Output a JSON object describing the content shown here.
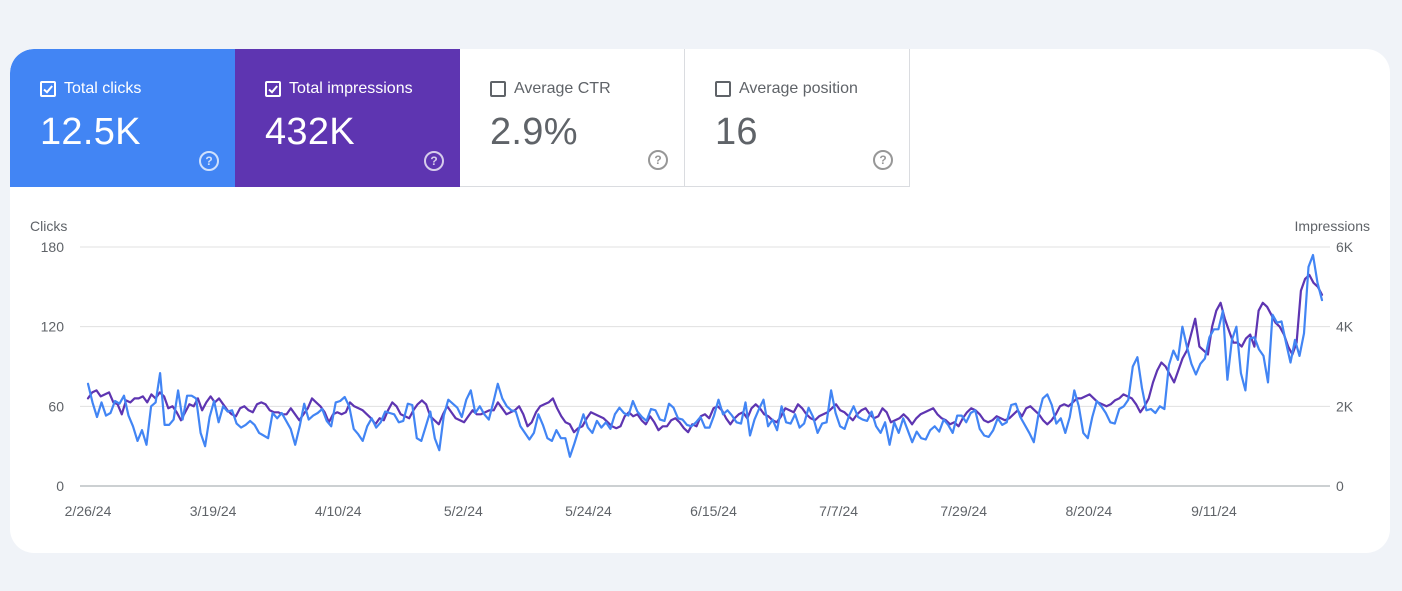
{
  "metrics": {
    "clicks": {
      "label": "Total clicks",
      "value": "12.5K",
      "checked": true
    },
    "impressions": {
      "label": "Total impressions",
      "value": "432K",
      "checked": true
    },
    "ctr": {
      "label": "Average CTR",
      "value": "2.9%",
      "checked": false
    },
    "position": {
      "label": "Average position",
      "value": "16",
      "checked": false
    }
  },
  "colors": {
    "clicks": "#4285f4",
    "impressions": "#5e35b1",
    "grid": "#e0e0e0",
    "axisText": "#5f6368"
  },
  "icons": {
    "checkbox": "check-icon",
    "help": "help-icon"
  },
  "chart_data": {
    "type": "line",
    "ylabel_left": "Clicks",
    "ylabel_right": "Impressions",
    "y_left_ticks": [
      "0",
      "60",
      "120",
      "180"
    ],
    "y_left_range": [
      0,
      180
    ],
    "y_right_ticks": [
      "0",
      "2K",
      "4K",
      "6K"
    ],
    "y_right_range": [
      0,
      6000
    ],
    "x_tick_labels": [
      "2/26/24",
      "3/19/24",
      "4/10/24",
      "5/2/24",
      "5/24/24",
      "6/15/24",
      "7/7/24",
      "7/29/24",
      "8/20/24",
      "9/11/24"
    ],
    "x_start": "2/26/24",
    "x_end": "9/30/24",
    "grid": true,
    "series": [
      {
        "name": "Clicks",
        "axis": "left",
        "color": "#4285f4",
        "values": [
          77,
          63,
          52,
          63,
          53,
          55,
          64,
          62,
          68,
          53,
          45,
          34,
          42,
          31,
          60,
          63,
          85,
          46,
          46,
          50,
          72,
          50,
          68,
          68,
          66,
          40,
          30,
          52,
          64,
          48,
          60,
          56,
          57,
          47,
          44,
          46,
          49,
          46,
          40,
          38,
          36,
          55,
          51,
          55,
          49,
          43,
          31,
          45,
          62,
          50,
          53,
          55,
          58,
          49,
          45,
          63,
          64,
          67,
          60,
          43,
          39,
          34,
          45,
          51,
          44,
          48,
          56,
          55,
          54,
          48,
          49,
          62,
          61,
          36,
          34,
          45,
          56,
          36,
          27,
          53,
          65,
          62,
          59,
          52,
          65,
          72,
          55,
          60,
          54,
          50,
          63,
          77,
          66,
          60,
          57,
          56,
          45,
          40,
          35,
          40,
          54,
          46,
          36,
          34,
          42,
          36,
          36,
          22,
          32,
          43,
          54,
          44,
          40,
          49,
          44,
          48,
          43,
          54,
          59,
          55,
          53,
          64,
          56,
          52,
          49,
          58,
          57,
          50,
          49,
          62,
          59,
          51,
          50,
          46,
          45,
          48,
          52,
          44,
          44,
          53,
          65,
          54,
          57,
          53,
          48,
          47,
          63,
          38,
          50,
          58,
          65,
          45,
          50,
          42,
          60,
          48,
          47,
          54,
          44,
          47,
          59,
          52,
          40,
          47,
          48,
          72,
          55,
          45,
          43,
          53,
          60,
          52,
          50,
          49,
          56,
          45,
          40,
          48,
          31,
          48,
          40,
          51,
          42,
          33,
          41,
          36,
          35,
          42,
          45,
          41,
          50,
          46,
          40,
          53,
          53,
          48,
          55,
          57,
          43,
          38,
          37,
          42,
          51,
          46,
          48,
          61,
          62,
          52,
          46,
          40,
          33,
          53,
          66,
          69,
          61,
          47,
          51,
          40,
          52,
          72,
          60,
          40,
          36,
          52,
          64,
          60,
          55,
          48,
          47,
          58,
          60,
          65,
          90,
          97,
          74,
          57,
          58,
          55,
          60,
          58,
          91,
          102,
          95,
          120,
          105,
          92,
          84,
          92,
          96,
          112,
          118,
          118,
          132,
          80,
          110,
          120,
          85,
          72,
          111,
          112,
          103,
          98,
          78,
          129,
          123,
          124,
          108,
          93,
          110,
          98,
          115,
          165,
          174,
          153,
          140
        ]
      },
      {
        "name": "Impressions",
        "axis": "right",
        "color": "#5e35b1",
        "values": [
          2200,
          2350,
          2400,
          2250,
          2300,
          2350,
          2100,
          2050,
          1800,
          2150,
          2100,
          2200,
          2200,
          2250,
          2100,
          2300,
          2200,
          2350,
          2250,
          1950,
          2000,
          1850,
          1650,
          1850,
          2050,
          2000,
          2200,
          1900,
          2100,
          2250,
          2100,
          2200,
          2050,
          1900,
          1800,
          1750,
          1950,
          2000,
          1900,
          1850,
          2050,
          2100,
          2050,
          1900,
          1850,
          1850,
          1800,
          1800,
          1950,
          1800,
          1650,
          1800,
          1950,
          2200,
          2100,
          2000,
          1850,
          1600,
          1800,
          1850,
          1800,
          1850,
          2100,
          2000,
          1950,
          1900,
          1800,
          1700,
          1550,
          1700,
          1650,
          1900,
          2100,
          2000,
          1800,
          1750,
          1700,
          1900,
          2050,
          2150,
          2050,
          1750,
          1650,
          1550,
          1800,
          2000,
          1850,
          1700,
          1650,
          1600,
          1750,
          1900,
          1800,
          1800,
          1850,
          1900,
          1900,
          2100,
          1950,
          1800,
          1850,
          1900,
          2000,
          1800,
          1500,
          1600,
          1850,
          2000,
          2050,
          2100,
          2200,
          1950,
          1750,
          1600,
          1550,
          1350,
          1450,
          1500,
          1700,
          1850,
          1800,
          1750,
          1700,
          1600,
          1500,
          1450,
          1500,
          1750,
          1850,
          1750,
          1800,
          1650,
          1550,
          1750,
          1600,
          1400,
          1500,
          1500,
          1650,
          1700,
          1600,
          1450,
          1350,
          1550,
          1500,
          1750,
          1800,
          1700,
          1950,
          2000,
          1900,
          1700,
          1550,
          1700,
          1800,
          1850,
          1700,
          1950,
          2050,
          1950,
          1800,
          1750,
          1650,
          1600,
          1750,
          1950,
          1900,
          1850,
          2050,
          1950,
          1800,
          1700,
          1650,
          1750,
          1800,
          1850,
          1950,
          2050,
          1900,
          1850,
          1750,
          1650,
          1800,
          1900,
          1950,
          1800,
          1700,
          1750,
          1950,
          1850,
          1600,
          1650,
          1700,
          1800,
          1700,
          1550,
          1700,
          1800,
          1850,
          1900,
          1950,
          1800,
          1700,
          1650,
          1550,
          1600,
          1500,
          1700,
          1850,
          1950,
          1900,
          1800,
          1650,
          1600,
          1650,
          1750,
          1700,
          1650,
          1700,
          1800,
          1900,
          1750,
          1950,
          2000,
          1900,
          1800,
          1650,
          1550,
          1650,
          1800,
          2000,
          2050,
          2000,
          2100,
          2200,
          2200,
          2250,
          2300,
          2200,
          2100,
          2050,
          2000,
          2050,
          2150,
          2200,
          2300,
          2250,
          2200,
          2050,
          1850,
          2000,
          2200,
          2600,
          2900,
          3100,
          3000,
          2800,
          2600,
          2900,
          3200,
          3400,
          3800,
          4200,
          3500,
          3400,
          3300,
          4000,
          4400,
          4600,
          4200,
          3900,
          3600,
          3600,
          3500,
          3700,
          3800,
          3500,
          4400,
          4600,
          4500,
          4300,
          4100,
          4000,
          3800,
          3500,
          3300,
          3600,
          4900,
          5200,
          5300,
          5100,
          5000,
          4800
        ]
      }
    ]
  }
}
